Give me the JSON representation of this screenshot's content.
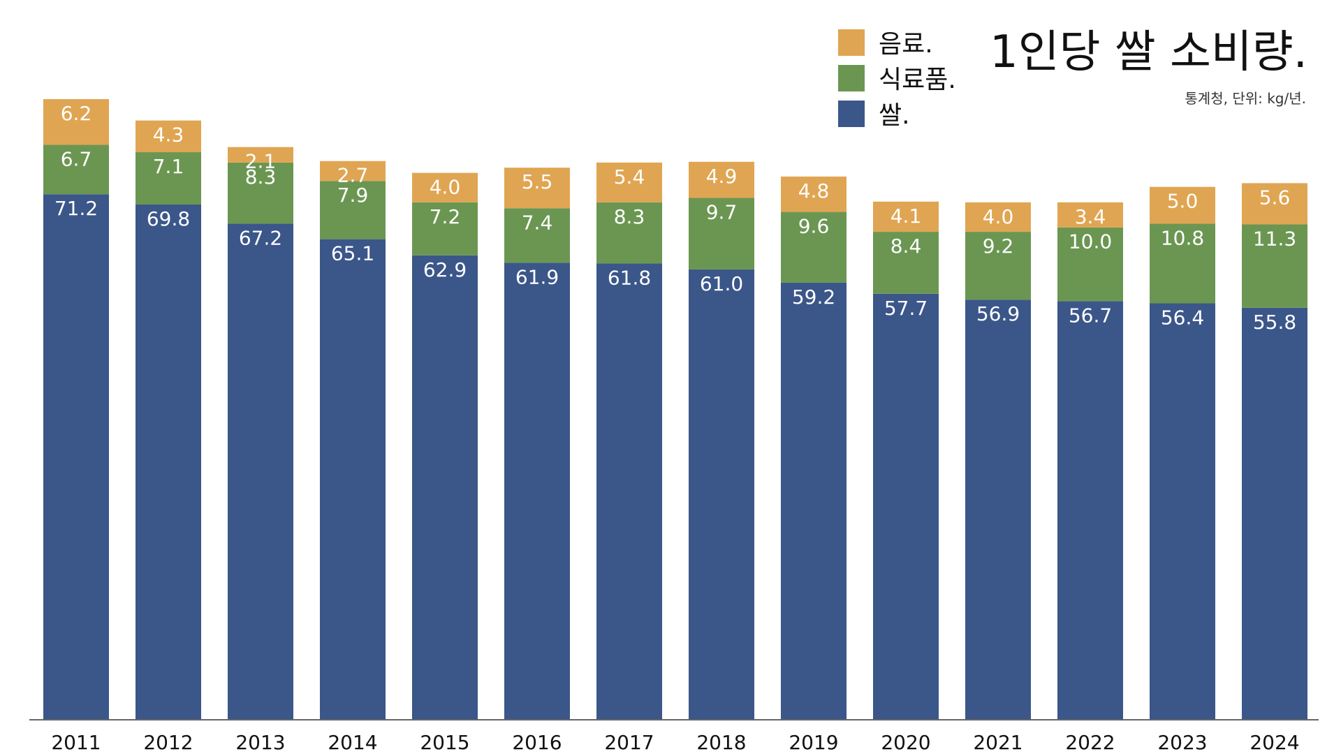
{
  "chart_data": {
    "type": "bar",
    "stacked": true,
    "title": "1인당 쌀 소비량.",
    "subtitle": "통계청, 단위: kg/년.",
    "categories": [
      "2011",
      "2012",
      "2013",
      "2014",
      "2015",
      "2016",
      "2017",
      "2018",
      "2019",
      "2020",
      "2021",
      "2022",
      "2023",
      "2024"
    ],
    "series": [
      {
        "name": "쌀.",
        "color": "#3b5689",
        "values": [
          71.2,
          69.8,
          67.2,
          65.1,
          62.9,
          61.9,
          61.8,
          61.0,
          59.2,
          57.7,
          56.9,
          56.7,
          56.4,
          55.8
        ],
        "labels": [
          "71.2",
          "69.8",
          "67.2",
          "65.1",
          "62.9",
          "61.9",
          "61.8",
          "61.0",
          "59.2",
          "57.7",
          "56.9",
          "56.7",
          "56.4",
          "55.8"
        ]
      },
      {
        "name": "식료품.",
        "color": "#6b9652",
        "values": [
          6.7,
          7.1,
          8.3,
          7.9,
          7.2,
          7.4,
          8.3,
          9.7,
          9.6,
          8.4,
          9.2,
          10.0,
          10.8,
          11.3
        ],
        "labels": [
          "6.7",
          "7.1",
          "8.3",
          "7.9",
          "7.2",
          "7.4",
          "8.3",
          "9.7",
          "9.6",
          "8.4",
          "9.2",
          "10.0",
          "10.8",
          "11.3"
        ]
      },
      {
        "name": "음료.",
        "color": "#e0a552",
        "values": [
          6.2,
          4.3,
          2.1,
          2.7,
          4.0,
          5.5,
          5.4,
          4.9,
          4.8,
          4.1,
          4.0,
          3.4,
          5.0,
          5.6
        ],
        "labels": [
          "6.2",
          "4.3",
          "2.1",
          "2.7",
          "4.0",
          "5.5",
          "5.4",
          "4.9",
          "4.8",
          "4.1",
          "4.0",
          "3.4",
          "5.0",
          "5.6"
        ]
      }
    ],
    "legend": {
      "position": "top-right",
      "order": [
        "음료.",
        "식료품.",
        "쌀."
      ]
    },
    "ylim": [
      0,
      84.1
    ],
    "grid": false,
    "xlabel": "",
    "ylabel": ""
  }
}
